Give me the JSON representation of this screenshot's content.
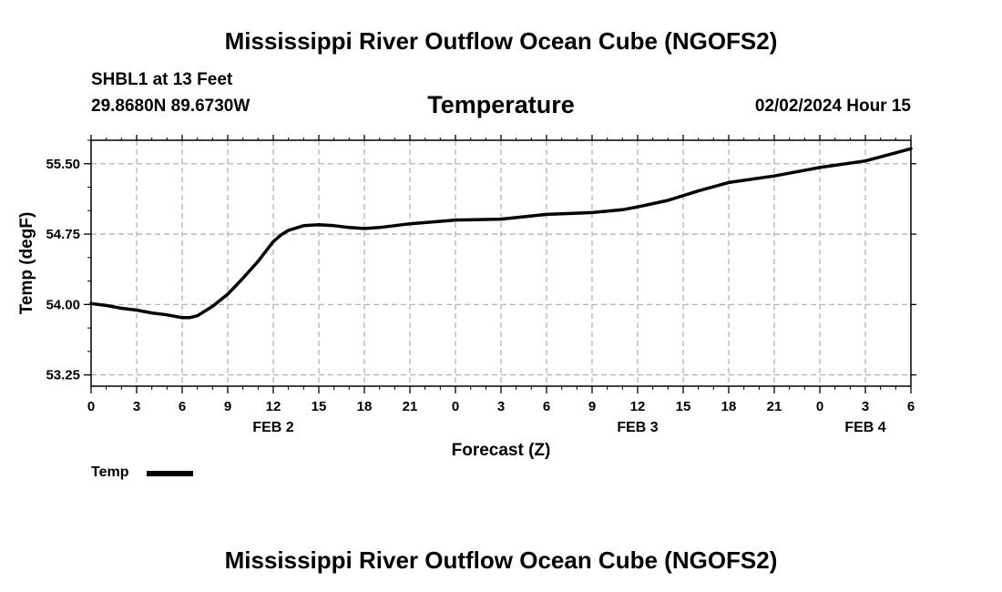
{
  "header": {
    "title": "Mississippi River Outflow Ocean Cube (NGOFS2)",
    "station": "SHBL1 at 13 Feet",
    "coordinates": "29.8680N  89.6730W",
    "variable": "Temperature",
    "timestamp": "02/02/2024 Hour 15"
  },
  "footer": {
    "title": "Mississippi River Outflow Ocean Cube (NGOFS2)"
  },
  "legend": {
    "label": "Temp",
    "color": "#000000"
  },
  "chart_data": {
    "type": "line",
    "title": "Temperature",
    "xlabel": "Forecast (Z)",
    "ylabel": "Temp (degF)",
    "xlim": [
      0,
      54
    ],
    "ylim": [
      53.13,
      55.75
    ],
    "grid": true,
    "legend_position": "bottom-left",
    "x_ticks": [
      0,
      3,
      6,
      9,
      12,
      15,
      18,
      21,
      24,
      27,
      30,
      33,
      36,
      39,
      42,
      45,
      48,
      51,
      54
    ],
    "x_tick_labels": [
      "0",
      "3",
      "6",
      "9",
      "12",
      "15",
      "18",
      "21",
      "0",
      "3",
      "6",
      "9",
      "12",
      "15",
      "18",
      "21",
      "0",
      "3",
      "6"
    ],
    "date_labels": [
      {
        "x": 12,
        "label": "FEB 2"
      },
      {
        "x": 36,
        "label": "FEB 3"
      },
      {
        "x": 51,
        "label": "FEB 4"
      }
    ],
    "y_ticks": [
      53.25,
      54.0,
      54.75,
      55.5
    ],
    "y_tick_labels": [
      "53.25",
      "54.00",
      "54.75",
      "55.50"
    ],
    "series": [
      {
        "name": "Temp",
        "color": "#000000",
        "x": [
          0,
          1,
          2,
          3,
          4,
          5,
          6,
          6.5,
          7,
          8,
          9,
          10,
          11,
          12,
          12.5,
          13,
          14,
          15,
          16,
          17,
          18,
          19,
          21,
          24,
          27,
          30,
          33,
          35,
          36,
          38,
          40,
          42,
          45,
          48,
          51,
          54
        ],
        "y": [
          54.01,
          53.99,
          53.96,
          53.94,
          53.91,
          53.89,
          53.86,
          53.86,
          53.88,
          53.98,
          54.11,
          54.28,
          54.46,
          54.67,
          54.74,
          54.79,
          54.84,
          54.85,
          54.84,
          54.82,
          54.81,
          54.82,
          54.86,
          54.9,
          54.91,
          54.96,
          54.98,
          55.01,
          55.04,
          55.11,
          55.21,
          55.3,
          55.37,
          55.46,
          55.53,
          55.66
        ]
      }
    ]
  }
}
